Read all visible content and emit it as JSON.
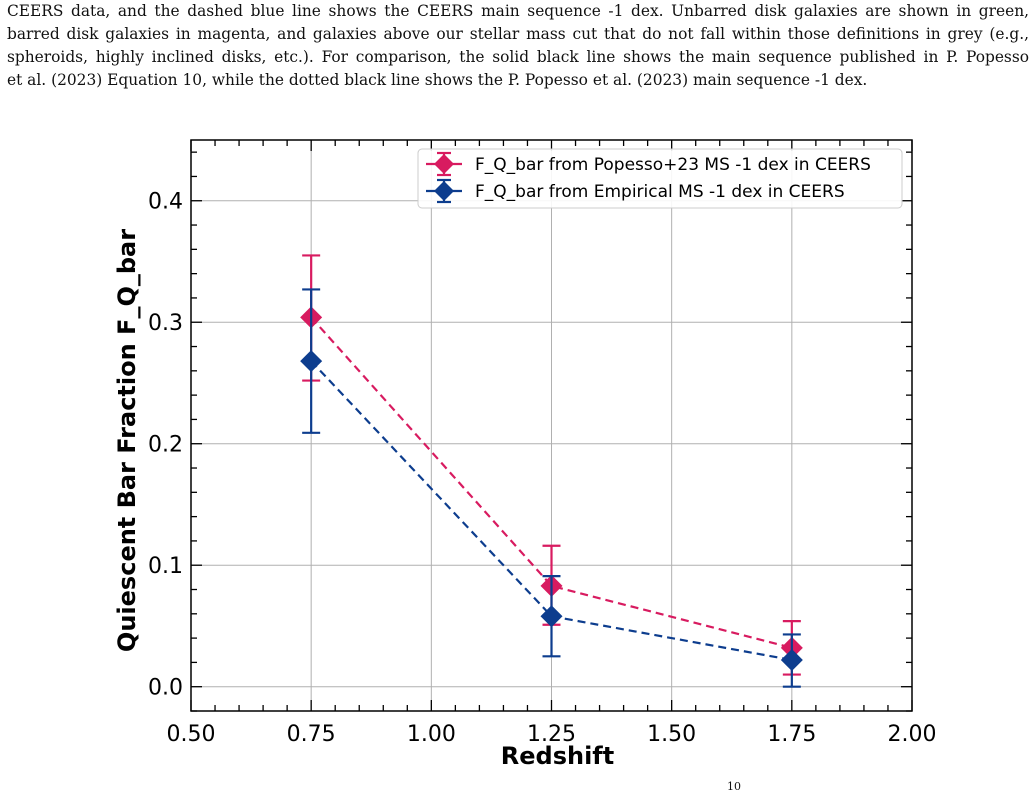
{
  "caption": {
    "lines": [
      "CEERS data, and the dashed blue line shows the CEERS main sequence -1 dex. Unbarred disk galaxies are shown in green,",
      "barred disk galaxies in magenta, and galaxies above our stellar mass cut that do not fall within those definitions in grey (e.g.,",
      "spheroids, highly inclined disks, etc.). For comparison, the solid black line shows the main sequence published in P. Popesso",
      "et al. (2023) Equation 10, while the dotted black line shows the P. Popesso et al. (2023) main sequence -1 dex."
    ]
  },
  "page_fragment": "10",
  "colors": {
    "popesso": "#d81b60",
    "empirical": "#0d3d8e",
    "grid": "#b0b0b0"
  },
  "chart_data": {
    "type": "scatter",
    "xlabel": "Redshift",
    "ylabel": "Quiescent Bar Fraction F_Q_bar",
    "xlim": [
      0.5,
      2.0
    ],
    "ylim": [
      -0.02,
      0.45
    ],
    "x_ticks": [
      "0.50",
      "0.75",
      "1.00",
      "1.25",
      "1.50",
      "1.75",
      "2.00"
    ],
    "y_ticks": [
      "0.0",
      "0.1",
      "0.2",
      "0.3",
      "0.4"
    ],
    "grid": true,
    "legend_position": "top-right",
    "series": [
      {
        "name": "F_Q_bar from Popesso+23 MS -1 dex in CEERS",
        "color": "#d81b60",
        "marker": "diamond",
        "linestyle": "dashed",
        "x": [
          0.75,
          1.25,
          1.75
        ],
        "y": [
          0.304,
          0.083,
          0.032
        ],
        "yerr_low": [
          0.252,
          0.051,
          0.01
        ],
        "yerr_high": [
          0.355,
          0.116,
          0.054
        ]
      },
      {
        "name": "F_Q_bar from Empirical MS -1 dex in CEERS",
        "color": "#0d3d8e",
        "marker": "diamond",
        "linestyle": "dashed",
        "x": [
          0.75,
          1.25,
          1.75
        ],
        "y": [
          0.268,
          0.058,
          0.022
        ],
        "yerr_low": [
          0.209,
          0.025,
          0.0
        ],
        "yerr_high": [
          0.327,
          0.091,
          0.043
        ]
      }
    ]
  }
}
